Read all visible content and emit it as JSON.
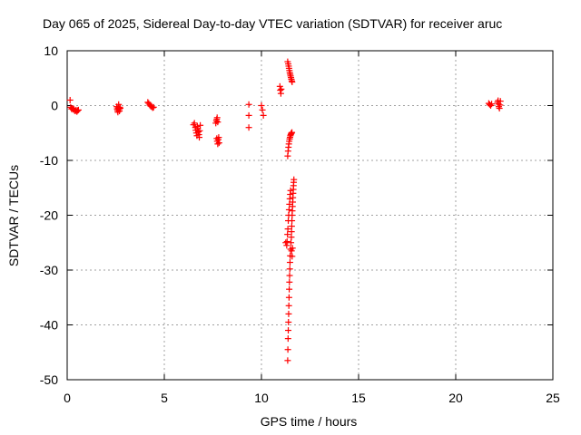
{
  "chart_data": {
    "type": "scatter",
    "title": "Day 065 of 2025, Sidereal Day-to-day VTEC variation (SDTVAR) for receiver aruc",
    "xlabel": "GPS time / hours",
    "ylabel": "SDTVAR / TECUs",
    "xlim": [
      0,
      25
    ],
    "ylim": [
      -50,
      10
    ],
    "xticks": [
      0,
      5,
      10,
      15,
      20,
      25
    ],
    "yticks": [
      -50,
      -40,
      -30,
      -20,
      -10,
      0,
      10
    ],
    "grid": true,
    "marker": "+",
    "series": [
      {
        "name": "SDTVAR",
        "color": "#ff0000",
        "points": [
          [
            0.15,
            1.0
          ],
          [
            0.18,
            -0.3
          ],
          [
            0.22,
            -0.6
          ],
          [
            0.26,
            -0.5
          ],
          [
            0.3,
            -0.7
          ],
          [
            0.34,
            -0.6
          ],
          [
            0.38,
            -0.9
          ],
          [
            0.42,
            -1.0
          ],
          [
            0.46,
            -0.8
          ],
          [
            0.5,
            -1.1
          ],
          [
            0.54,
            -0.9
          ],
          [
            0.58,
            -0.8
          ],
          [
            2.55,
            -0.2
          ],
          [
            2.57,
            -0.6
          ],
          [
            2.59,
            -0.9
          ],
          [
            2.61,
            -1.2
          ],
          [
            2.63,
            -0.4
          ],
          [
            2.65,
            0.2
          ],
          [
            2.67,
            -0.7
          ],
          [
            2.69,
            -1.0
          ],
          [
            2.71,
            -0.3
          ],
          [
            2.73,
            -0.5
          ],
          [
            4.15,
            0.6
          ],
          [
            4.2,
            0.4
          ],
          [
            4.25,
            0.1
          ],
          [
            4.3,
            -0.1
          ],
          [
            4.35,
            -0.2
          ],
          [
            4.4,
            -0.4
          ],
          [
            4.45,
            -0.3
          ],
          [
            6.5,
            -3.5
          ],
          [
            6.55,
            -3.2
          ],
          [
            6.6,
            -4.0
          ],
          [
            6.62,
            -4.5
          ],
          [
            6.65,
            -5.0
          ],
          [
            6.68,
            -5.5
          ],
          [
            6.7,
            -3.8
          ],
          [
            6.72,
            -4.2
          ],
          [
            6.75,
            -4.8
          ],
          [
            6.78,
            -5.3
          ],
          [
            6.8,
            -5.8
          ],
          [
            6.82,
            -4.6
          ],
          [
            6.85,
            -3.6
          ],
          [
            7.65,
            -3.2
          ],
          [
            7.68,
            -2.8
          ],
          [
            7.7,
            -2.5
          ],
          [
            7.72,
            -2.2
          ],
          [
            7.75,
            -3.0
          ],
          [
            7.7,
            -6.0
          ],
          [
            7.72,
            -6.5
          ],
          [
            7.75,
            -7.0
          ],
          [
            7.78,
            -6.2
          ],
          [
            7.8,
            -5.8
          ],
          [
            7.82,
            -6.8
          ],
          [
            9.35,
            0.2
          ],
          [
            9.35,
            -1.8
          ],
          [
            9.35,
            -4.0
          ],
          [
            10.0,
            0.0
          ],
          [
            10.05,
            -0.8
          ],
          [
            10.1,
            -1.8
          ],
          [
            10.95,
            3.5
          ],
          [
            10.97,
            2.8
          ],
          [
            11.0,
            2.2
          ],
          [
            11.02,
            3.0
          ],
          [
            11.35,
            8.0
          ],
          [
            11.38,
            7.6
          ],
          [
            11.4,
            7.2
          ],
          [
            11.42,
            6.8
          ],
          [
            11.44,
            6.4
          ],
          [
            11.46,
            6.0
          ],
          [
            11.48,
            5.7
          ],
          [
            11.5,
            5.4
          ],
          [
            11.52,
            5.1
          ],
          [
            11.54,
            4.8
          ],
          [
            11.56,
            4.5
          ],
          [
            11.58,
            4.3
          ],
          [
            11.35,
            -9.2
          ],
          [
            11.37,
            -8.3
          ],
          [
            11.39,
            -7.6
          ],
          [
            11.41,
            -7.0
          ],
          [
            11.43,
            -6.5
          ],
          [
            11.45,
            -6.1
          ],
          [
            11.47,
            -5.8
          ],
          [
            11.49,
            -5.5
          ],
          [
            11.51,
            -5.3
          ],
          [
            11.53,
            -5.1
          ],
          [
            11.55,
            -5.0
          ],
          [
            11.57,
            -4.9
          ],
          [
            11.35,
            -46.5
          ],
          [
            11.36,
            -44.5
          ],
          [
            11.37,
            -42.5
          ],
          [
            11.38,
            -41.0
          ],
          [
            11.39,
            -39.5
          ],
          [
            11.4,
            -38.0
          ],
          [
            11.41,
            -36.5
          ],
          [
            11.42,
            -35.0
          ],
          [
            11.43,
            -33.5
          ],
          [
            11.44,
            -32.2
          ],
          [
            11.45,
            -31.0
          ],
          [
            11.46,
            -29.8
          ],
          [
            11.47,
            -28.6
          ],
          [
            11.48,
            -27.4
          ],
          [
            11.5,
            -26.2
          ],
          [
            11.52,
            -25.0
          ],
          [
            11.54,
            -24.0
          ],
          [
            11.55,
            -23.0
          ],
          [
            11.56,
            -22.0
          ],
          [
            11.57,
            -21.0
          ],
          [
            11.58,
            -20.0
          ],
          [
            11.59,
            -19.2
          ],
          [
            11.6,
            -18.4
          ],
          [
            11.61,
            -17.6
          ],
          [
            11.62,
            -16.8
          ],
          [
            11.63,
            -16.0
          ],
          [
            11.64,
            -15.3
          ],
          [
            11.65,
            -14.6
          ],
          [
            11.66,
            -14.0
          ],
          [
            11.67,
            -13.5
          ],
          [
            11.3,
            -25.5
          ],
          [
            11.32,
            -24.8
          ],
          [
            11.34,
            -23.5
          ],
          [
            11.36,
            -22.5
          ],
          [
            11.38,
            -21.0
          ],
          [
            11.4,
            -20.0
          ],
          [
            11.42,
            -19.0
          ],
          [
            11.44,
            -18.0
          ],
          [
            11.46,
            -17.0
          ],
          [
            11.48,
            -16.2
          ],
          [
            11.5,
            -15.5
          ],
          [
            11.55,
            -26.5
          ],
          [
            11.58,
            -27.5
          ],
          [
            11.6,
            -26.0
          ],
          [
            11.25,
            -25.0
          ],
          [
            21.7,
            0.4
          ],
          [
            21.75,
            0.2
          ],
          [
            21.8,
            0.0
          ],
          [
            21.85,
            0.3
          ],
          [
            22.15,
            0.6
          ],
          [
            22.18,
            0.9
          ],
          [
            22.2,
            0.3
          ],
          [
            22.22,
            -0.2
          ],
          [
            22.25,
            -0.5
          ],
          [
            22.28,
            0.1
          ],
          [
            22.3,
            0.8
          ]
        ]
      }
    ]
  }
}
